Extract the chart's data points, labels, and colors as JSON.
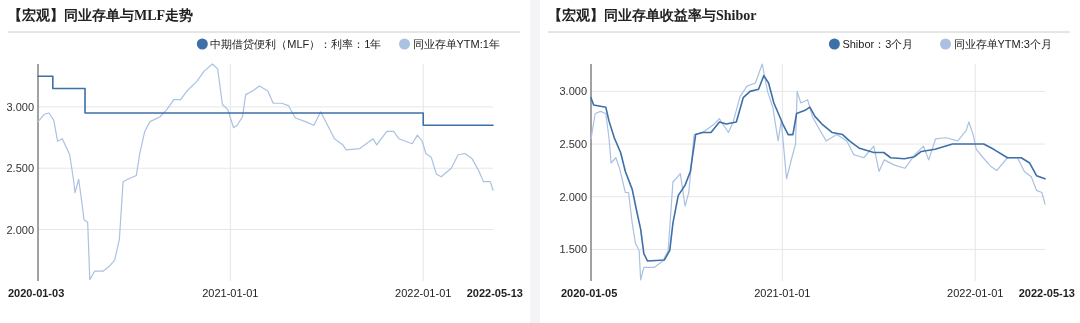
{
  "chart_data": [
    {
      "type": "line",
      "title": "【宏观】同业存单与MLF走势",
      "xlim": [
        "2020-01-03",
        "2022-05-13"
      ],
      "ylim": [
        1.58,
        3.35
      ],
      "xticks": [
        {
          "value": "2020-01-03",
          "label": "2020-01-03"
        },
        {
          "value": "2021-01-01",
          "label": "2021-01-01"
        },
        {
          "value": "2022-01-01",
          "label": "2022-01-01"
        },
        {
          "value": "2022-05-13",
          "label": "2022-05-13"
        }
      ],
      "yticks": [
        {
          "value": 2,
          "label": "2.000"
        },
        {
          "value": 2.5,
          "label": "2.500"
        },
        {
          "value": 3,
          "label": "3.000"
        }
      ],
      "grid": true,
      "legend": "top right",
      "series": [
        {
          "name": "中期借贷便利（MLF）：利率：1年",
          "type": "step",
          "color": "#3d6fa8",
          "x": [
            "2020-01-03",
            "2020-01-31",
            "2020-04-01",
            "2022-01-01",
            "2022-05-13"
          ],
          "values": [
            3.25,
            3.15,
            2.95,
            2.85,
            2.85
          ]
        },
        {
          "name": "同业存单YTM:1年",
          "type": "line",
          "color": "#aac1e2",
          "x": [
            "2020-01-03",
            "2020-01-15",
            "2020-01-24",
            "2020-02-02",
            "2020-02-09",
            "2020-02-18",
            "2020-03-03",
            "2020-03-10",
            "2020-03-13",
            "2020-03-20",
            "2020-03-27",
            "2020-03-30",
            "2020-04-06",
            "2020-04-10",
            "2020-04-19",
            "2020-05-05",
            "2020-05-17",
            "2020-05-27",
            "2020-06-05",
            "2020-06-12",
            "2020-06-21",
            "2020-07-07",
            "2020-07-14",
            "2020-07-23",
            "2020-08-02",
            "2020-08-21",
            "2020-09-03",
            "2020-09-16",
            "2020-09-29",
            "2020-10-11",
            "2020-10-30",
            "2020-11-12",
            "2020-11-28",
            "2020-12-08",
            "2020-12-17",
            "2020-12-27",
            "2021-01-07",
            "2021-01-14",
            "2021-01-24",
            "2021-01-30",
            "2021-02-12",
            "2021-02-25",
            "2021-03-13",
            "2021-03-23",
            "2021-04-08",
            "2021-04-21",
            "2021-05-04",
            "2021-05-23",
            "2021-06-08",
            "2021-06-21",
            "2021-07-04",
            "2021-07-17",
            "2021-08-02",
            "2021-08-08",
            "2021-09-03",
            "2021-09-28",
            "2021-10-05",
            "2021-10-24",
            "2021-11-06",
            "2021-11-16",
            "2021-12-11",
            "2021-12-21",
            "2021-12-30",
            "2022-01-06",
            "2022-01-16",
            "2022-01-26",
            "2022-02-04",
            "2022-02-23",
            "2022-03-08",
            "2022-03-21",
            "2022-04-03",
            "2022-04-16",
            "2022-04-25",
            "2022-05-08",
            "2022-05-13"
          ],
          "values": [
            2.88,
            2.94,
            2.95,
            2.89,
            2.72,
            2.74,
            2.61,
            2.41,
            2.3,
            2.41,
            2.19,
            2.08,
            2.06,
            1.59,
            1.66,
            1.66,
            1.7,
            1.75,
            1.92,
            2.39,
            2.41,
            2.44,
            2.63,
            2.8,
            2.88,
            2.92,
            2.98,
            3.06,
            3.06,
            3.13,
            3.21,
            3.29,
            3.35,
            3.31,
            3.02,
            2.98,
            2.83,
            2.85,
            2.92,
            3.1,
            3.13,
            3.17,
            3.13,
            3.03,
            3.03,
            3.01,
            2.91,
            2.88,
            2.85,
            2.96,
            2.85,
            2.74,
            2.69,
            2.65,
            2.66,
            2.74,
            2.69,
            2.8,
            2.8,
            2.74,
            2.7,
            2.77,
            2.72,
            2.62,
            2.59,
            2.45,
            2.43,
            2.5,
            2.61,
            2.62,
            2.58,
            2.48,
            2.39,
            2.39,
            2.32
          ]
        }
      ]
    },
    {
      "type": "line",
      "title": "【宏观】同业存单收益率与Shibor",
      "xlim": [
        "2020-01-05",
        "2022-05-13"
      ],
      "ylim": [
        1.2,
        3.26
      ],
      "xticks": [
        {
          "value": "2020-01-05",
          "label": "2020-01-05"
        },
        {
          "value": "2021-01-01",
          "label": "2021-01-01"
        },
        {
          "value": "2022-01-01",
          "label": "2022-01-01"
        },
        {
          "value": "2022-05-13",
          "label": "2022-05-13"
        }
      ],
      "yticks": [
        {
          "value": 1.5,
          "label": "1.500"
        },
        {
          "value": 2,
          "label": "2.000"
        },
        {
          "value": 2.5,
          "label": "2.500"
        },
        {
          "value": 3,
          "label": "3.000"
        }
      ],
      "grid": true,
      "legend": "top right",
      "series": [
        {
          "name": "Shibor：3个月",
          "type": "line",
          "color": "#3d6fa8",
          "x": [
            "2020-01-05",
            "2020-01-10",
            "2020-02-02",
            "2020-02-08",
            "2020-02-18",
            "2020-03-01",
            "2020-03-10",
            "2020-03-23",
            "2020-04-01",
            "2020-04-08",
            "2020-04-14",
            "2020-04-21",
            "2020-05-23",
            "2020-06-02",
            "2020-06-08",
            "2020-06-18",
            "2020-07-01",
            "2020-07-11",
            "2020-07-21",
            "2020-08-03",
            "2020-08-19",
            "2020-09-04",
            "2020-09-17",
            "2020-10-06",
            "2020-10-19",
            "2020-11-01",
            "2020-11-17",
            "2020-11-27",
            "2020-12-06",
            "2020-12-16",
            "2021-01-02",
            "2021-01-12",
            "2021-01-21",
            "2021-01-28",
            "2021-02-13",
            "2021-02-22",
            "2021-03-04",
            "2021-03-17",
            "2021-04-05",
            "2021-04-25",
            "2021-05-08",
            "2021-05-27",
            "2021-06-23",
            "2021-07-12",
            "2021-07-25",
            "2021-08-20",
            "2021-09-08",
            "2021-09-21",
            "2021-10-17",
            "2021-11-19",
            "2021-12-21",
            "2022-01-17",
            "2022-02-05",
            "2022-03-03",
            "2022-03-29",
            "2022-04-14",
            "2022-04-27",
            "2022-05-13"
          ],
          "values": [
            2.94,
            2.87,
            2.85,
            2.72,
            2.56,
            2.42,
            2.24,
            2.07,
            1.85,
            1.69,
            1.46,
            1.39,
            1.4,
            1.49,
            1.75,
            2.01,
            2.11,
            2.24,
            2.59,
            2.61,
            2.61,
            2.71,
            2.69,
            2.71,
            2.94,
            3.0,
            3.02,
            3.15,
            3.08,
            2.89,
            2.69,
            2.59,
            2.59,
            2.79,
            2.82,
            2.85,
            2.76,
            2.69,
            2.61,
            2.59,
            2.53,
            2.46,
            2.42,
            2.42,
            2.37,
            2.36,
            2.38,
            2.43,
            2.45,
            2.5,
            2.5,
            2.5,
            2.45,
            2.37,
            2.37,
            2.32,
            2.2,
            2.17
          ]
        },
        {
          "name": "同业存单YTM:3个月",
          "type": "line",
          "color": "#aac1e2",
          "x": [
            "2020-01-05",
            "2020-01-13",
            "2020-01-23",
            "2020-02-02",
            "2020-02-08",
            "2020-02-12",
            "2020-02-21",
            "2020-02-28",
            "2020-03-10",
            "2020-03-16",
            "2020-03-23",
            "2020-03-29",
            "2020-04-05",
            "2020-04-08",
            "2020-04-14",
            "2020-05-04",
            "2020-05-20",
            "2020-05-30",
            "2020-06-08",
            "2020-06-22",
            "2020-07-01",
            "2020-07-08",
            "2020-07-18",
            "2020-08-03",
            "2020-08-23",
            "2020-09-04",
            "2020-09-21",
            "2020-09-30",
            "2020-10-13",
            "2020-10-26",
            "2020-11-11",
            "2020-11-24",
            "2020-12-04",
            "2020-12-14",
            "2020-12-24",
            "2020-12-30",
            "2021-01-09",
            "2021-01-19",
            "2021-01-26",
            "2021-01-29",
            "2021-02-05",
            "2021-02-18",
            "2021-02-27",
            "2021-03-12",
            "2021-03-25",
            "2021-04-14",
            "2021-05-03",
            "2021-05-16",
            "2021-06-04",
            "2021-06-23",
            "2021-07-03",
            "2021-07-13",
            "2021-08-01",
            "2021-08-21",
            "2021-09-09",
            "2021-09-25",
            "2021-10-05",
            "2021-10-18",
            "2021-11-06",
            "2021-11-29",
            "2021-12-15",
            "2021-12-20",
            "2021-12-28",
            "2022-01-03",
            "2022-01-16",
            "2022-01-30",
            "2022-02-11",
            "2022-03-03",
            "2022-03-22",
            "2022-04-04",
            "2022-04-17",
            "2022-04-27",
            "2022-05-07",
            "2022-05-13"
          ],
          "values": [
            2.55,
            2.79,
            2.81,
            2.79,
            2.56,
            2.32,
            2.37,
            2.27,
            2.04,
            2.04,
            1.75,
            1.56,
            1.49,
            1.21,
            1.33,
            1.33,
            1.39,
            1.49,
            2.14,
            2.22,
            1.91,
            2.04,
            2.59,
            2.61,
            2.68,
            2.74,
            2.61,
            2.71,
            2.95,
            3.05,
            3.08,
            3.26,
            3.0,
            2.85,
            2.53,
            2.72,
            2.17,
            2.37,
            2.5,
            3.0,
            2.89,
            2.92,
            2.76,
            2.64,
            2.53,
            2.59,
            2.53,
            2.4,
            2.37,
            2.48,
            2.24,
            2.35,
            2.3,
            2.27,
            2.4,
            2.48,
            2.35,
            2.55,
            2.56,
            2.53,
            2.63,
            2.71,
            2.59,
            2.45,
            2.37,
            2.29,
            2.25,
            2.37,
            2.37,
            2.24,
            2.19,
            2.06,
            2.04,
            1.93
          ]
        }
      ]
    }
  ]
}
